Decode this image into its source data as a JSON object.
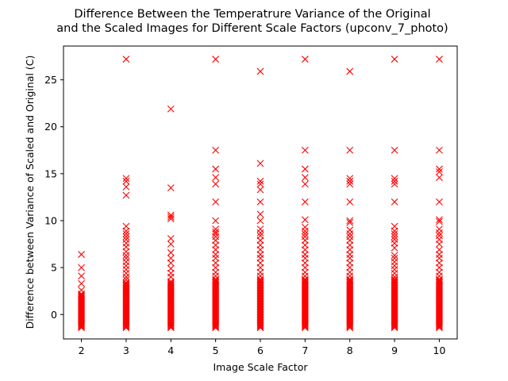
{
  "chart_data": {
    "type": "scatter",
    "title_lines": [
      "Difference Between the Temperatrure Variance of the Original",
      "and the Scaled Images for Different Scale Factors (upconv_7_photo)"
    ],
    "xlabel": "Image Scale Factor",
    "ylabel": "Difference between Variance of Scaled and Original (C)",
    "xlim": [
      1.6,
      10.4
    ],
    "ylim": [
      -2.6,
      28.6
    ],
    "x_ticks": [
      2,
      3,
      4,
      5,
      6,
      7,
      8,
      9,
      10
    ],
    "y_ticks": [
      0,
      5,
      10,
      15,
      20,
      25
    ],
    "marker": "x",
    "marker_color": "#ff0000",
    "grid": false,
    "series": [
      {
        "x": 2,
        "outliers": [
          6.4,
          5.0,
          4.1,
          3.3,
          2.6
        ],
        "dense_range": [
          -1.4,
          2.2
        ]
      },
      {
        "x": 3,
        "outliers": [
          27.2,
          14.5,
          14.2,
          13.6,
          12.7,
          9.4,
          8.9,
          8.6,
          8.3,
          8.0,
          7.6,
          7.2,
          6.7,
          6.3,
          6.0,
          5.6,
          5.2,
          4.8,
          4.4,
          4.0,
          3.7
        ],
        "dense_range": [
          -1.4,
          3.4
        ]
      },
      {
        "x": 4,
        "outliers": [
          21.9,
          13.5,
          10.6,
          10.4,
          10.2,
          8.1,
          7.5,
          6.6,
          6.0,
          5.5,
          4.9,
          4.4,
          4.0
        ],
        "dense_range": [
          -1.4,
          3.6
        ]
      },
      {
        "x": 5,
        "outliers": [
          27.2,
          17.5,
          15.5,
          14.6,
          13.9,
          12.0,
          10.0,
          9.1,
          8.8,
          8.6,
          8.3,
          7.9,
          7.4,
          6.9,
          6.4,
          6.0,
          5.5,
          5.0,
          4.5,
          4.1
        ],
        "dense_range": [
          -1.4,
          3.8
        ]
      },
      {
        "x": 6,
        "outliers": [
          25.9,
          16.1,
          14.2,
          13.9,
          13.3,
          12.0,
          10.7,
          10.0,
          9.1,
          8.7,
          8.4,
          7.9,
          7.4,
          6.9,
          6.4,
          6.0,
          5.5,
          5.0,
          4.5,
          4.1
        ],
        "dense_range": [
          -1.4,
          3.8
        ]
      },
      {
        "x": 7,
        "outliers": [
          27.2,
          17.5,
          15.5,
          14.6,
          13.9,
          12.0,
          10.1,
          9.3,
          8.9,
          8.6,
          8.3,
          7.9,
          7.4,
          6.9,
          6.4,
          6.0,
          5.5,
          5.0,
          4.5,
          4.1
        ],
        "dense_range": [
          -1.4,
          3.8
        ]
      },
      {
        "x": 8,
        "outliers": [
          25.9,
          17.5,
          14.5,
          14.2,
          13.9,
          12.0,
          10.0,
          9.8,
          9.0,
          8.6,
          8.3,
          7.9,
          7.4,
          6.9,
          6.4,
          6.0,
          5.5,
          5.0,
          4.5,
          4.1
        ],
        "dense_range": [
          -1.4,
          3.8
        ]
      },
      {
        "x": 9,
        "outliers": [
          27.2,
          17.5,
          14.5,
          14.2,
          13.9,
          12.0,
          9.4,
          8.9,
          8.6,
          8.3,
          8.0,
          7.6,
          7.1,
          6.3,
          6.0,
          5.6,
          5.2,
          4.8,
          4.4,
          4.0
        ],
        "dense_range": [
          -1.4,
          3.8
        ]
      },
      {
        "x": 10,
        "outliers": [
          27.2,
          17.5,
          15.5,
          15.2,
          14.6,
          12.0,
          10.1,
          9.9,
          9.1,
          8.7,
          8.4,
          8.0,
          7.5,
          6.9,
          6.4,
          6.0,
          5.5,
          5.0,
          4.5,
          4.1
        ],
        "dense_range": [
          -1.4,
          3.8
        ]
      }
    ]
  }
}
